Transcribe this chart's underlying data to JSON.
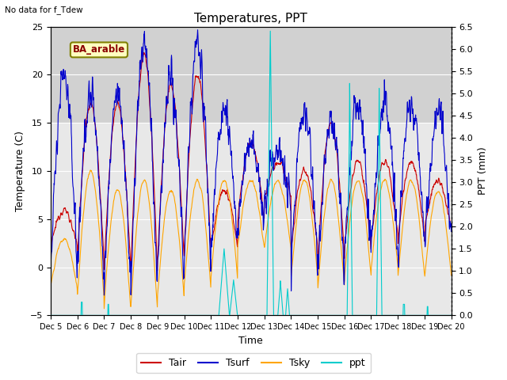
{
  "title": "Temperatures, PPT",
  "subtitle": "No data for f_Tdew",
  "label_text": "BA_arable",
  "xlabel": "Time",
  "ylabel_left": "Temperature (C)",
  "ylabel_right": "PPT (mm)",
  "ylim_left": [
    -5,
    25
  ],
  "ylim_right": [
    0.0,
    6.5
  ],
  "yticks_left": [
    -5,
    0,
    5,
    10,
    15,
    20,
    25
  ],
  "yticks_right": [
    0.0,
    0.5,
    1.0,
    1.5,
    2.0,
    2.5,
    3.0,
    3.5,
    4.0,
    4.5,
    5.0,
    5.5,
    6.0,
    6.5
  ],
  "xtick_labels": [
    "Dec 5",
    "Dec 6",
    "Dec 7",
    "Dec 8",
    "Dec 9",
    "Dec 10",
    "Dec 11",
    "Dec 12",
    "Dec 13",
    "Dec 14",
    "Dec 15",
    "Dec 16",
    "Dec 17",
    "Dec 18",
    "Dec 19",
    "Dec 20"
  ],
  "colors": {
    "Tair": "#cc0000",
    "Tsurf": "#0000cc",
    "Tsky": "#ffa500",
    "ppt": "#00cccc"
  },
  "plot_bg_color": "#e8e8e8",
  "gray_band_color": "#d0d0d0",
  "grid_color": "#ffffff"
}
